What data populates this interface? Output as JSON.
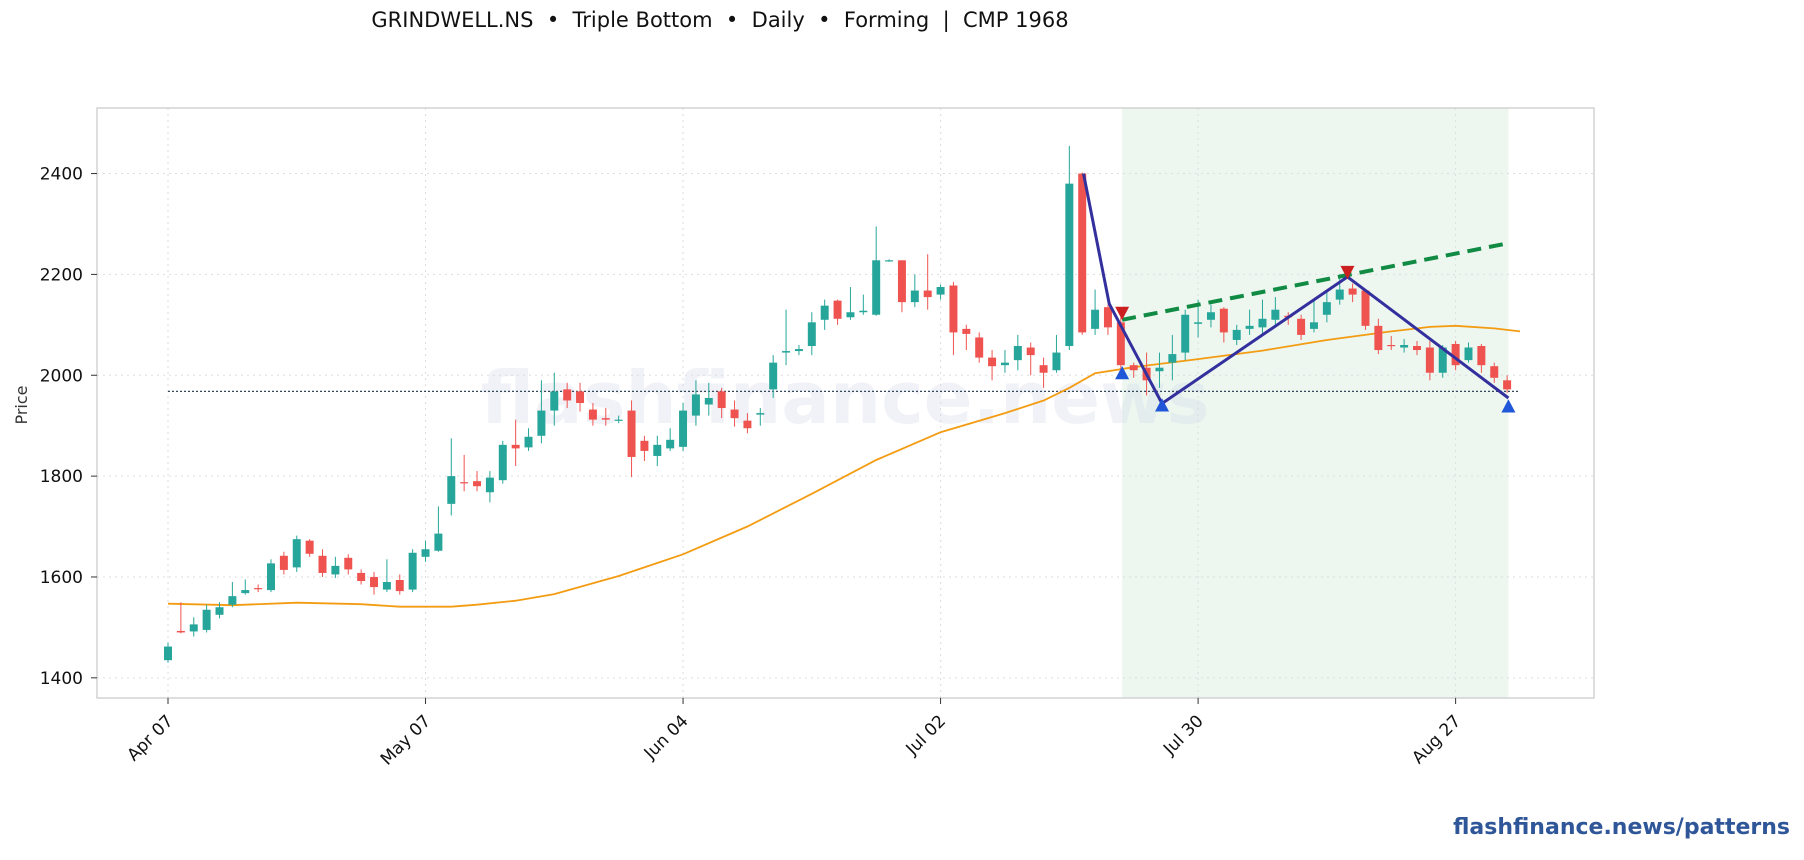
{
  "title": "GRINDWELL.NS  •  Triple Bottom  •  Daily  •  Forming  |  CMP 1968",
  "watermark": "flashfinance.news",
  "footer_link": "flashfinance.news/patterns",
  "colors": {
    "up": "#26a69a",
    "down": "#ef5350",
    "ma": "#f39c12",
    "neckline": "#118a44",
    "pattern": "#33309e",
    "highlight": "#dff0e3",
    "cmp": "#34495e"
  },
  "chart_data": {
    "type": "candlestick",
    "ylabel": "Price",
    "ylim": [
      1360,
      2530
    ],
    "yticks": [
      1400,
      1600,
      1800,
      2000,
      2200,
      2400
    ],
    "xticks": [
      {
        "label": "Apr 07",
        "i": 0
      },
      {
        "label": "May 07",
        "i": 20
      },
      {
        "label": "Jun 04",
        "i": 40
      },
      {
        "label": "Jul 02",
        "i": 60
      },
      {
        "label": "Jul 30",
        "i": 80
      },
      {
        "label": "Aug 27",
        "i": 100
      }
    ],
    "n_bars": 106,
    "candles": [
      [
        1435,
        1462,
        1470,
        1430
      ],
      [
        1493,
        1490,
        1550,
        1488
      ],
      [
        1492,
        1506,
        1520,
        1482
      ],
      [
        1495,
        1535,
        1545,
        1490
      ],
      [
        1525,
        1540,
        1550,
        1518
      ],
      [
        1545,
        1562,
        1590,
        1540
      ],
      [
        1568,
        1574,
        1595,
        1565
      ],
      [
        1578,
        1576,
        1585,
        1570
      ],
      [
        1574,
        1627,
        1635,
        1570
      ],
      [
        1642,
        1614,
        1650,
        1605
      ],
      [
        1619,
        1675,
        1682,
        1610
      ],
      [
        1672,
        1646,
        1675,
        1640
      ],
      [
        1642,
        1608,
        1655,
        1600
      ],
      [
        1605,
        1622,
        1640,
        1598
      ],
      [
        1638,
        1615,
        1645,
        1605
      ],
      [
        1608,
        1592,
        1615,
        1585
      ],
      [
        1600,
        1580,
        1610,
        1565
      ],
      [
        1575,
        1590,
        1635,
        1570
      ],
      [
        1594,
        1572,
        1605,
        1565
      ],
      [
        1575,
        1648,
        1655,
        1570
      ],
      [
        1640,
        1655,
        1672,
        1630
      ],
      [
        1652,
        1686,
        1740,
        1650
      ],
      [
        1745,
        1800,
        1875,
        1722
      ],
      [
        1788,
        1786,
        1842,
        1770
      ],
      [
        1790,
        1780,
        1810,
        1770
      ],
      [
        1768,
        1797,
        1810,
        1748
      ],
      [
        1792,
        1862,
        1870,
        1785
      ],
      [
        1862,
        1855,
        1912,
        1820
      ],
      [
        1857,
        1878,
        1895,
        1850
      ],
      [
        1880,
        1930,
        1990,
        1865
      ],
      [
        1930,
        1968,
        2005,
        1900
      ],
      [
        1972,
        1950,
        1985,
        1935
      ],
      [
        1968,
        1945,
        1985,
        1928
      ],
      [
        1932,
        1912,
        1945,
        1900
      ],
      [
        1915,
        1912,
        1935,
        1900
      ],
      [
        1912,
        1912,
        1920,
        1905
      ],
      [
        1930,
        1838,
        1950,
        1798
      ],
      [
        1870,
        1850,
        1880,
        1830
      ],
      [
        1840,
        1862,
        1880,
        1820
      ],
      [
        1855,
        1872,
        1895,
        1850
      ],
      [
        1858,
        1930,
        1945,
        1850
      ],
      [
        1920,
        1962,
        1990,
        1900
      ],
      [
        1942,
        1955,
        1985,
        1920
      ],
      [
        1968,
        1935,
        1975,
        1915
      ],
      [
        1932,
        1915,
        1950,
        1898
      ],
      [
        1910,
        1895,
        1925,
        1885
      ],
      [
        1922,
        1925,
        1935,
        1900
      ],
      [
        1972,
        2025,
        2040,
        1955
      ],
      [
        2045,
        2048,
        2130,
        2020
      ],
      [
        2048,
        2052,
        2060,
        2040
      ],
      [
        2058,
        2105,
        2125,
        2040
      ],
      [
        2110,
        2138,
        2150,
        2090
      ],
      [
        2148,
        2112,
        2150,
        2100
      ],
      [
        2115,
        2125,
        2175,
        2110
      ],
      [
        2125,
        2128,
        2160,
        2120
      ],
      [
        2120,
        2228,
        2295,
        2118
      ],
      [
        2228,
        2228,
        2230,
        2225
      ],
      [
        2228,
        2145,
        2228,
        2125
      ],
      [
        2145,
        2168,
        2200,
        2135
      ],
      [
        2168,
        2155,
        2240,
        2130
      ],
      [
        2160,
        2175,
        2180,
        2150
      ],
      [
        2178,
        2085,
        2185,
        2040
      ],
      [
        2092,
        2082,
        2100,
        2050
      ],
      [
        2075,
        2035,
        2085,
        2025
      ],
      [
        2035,
        2018,
        2050,
        1990
      ],
      [
        2020,
        2025,
        2050,
        2005
      ],
      [
        2030,
        2058,
        2080,
        2010
      ],
      [
        2055,
        2040,
        2065,
        2000
      ],
      [
        2020,
        2005,
        2035,
        1975
      ],
      [
        2010,
        2045,
        2080,
        2005
      ],
      [
        2058,
        2380,
        2455,
        2050
      ],
      [
        2400,
        2085,
        2402,
        2080
      ],
      [
        2092,
        2130,
        2170,
        2080
      ],
      [
        2135,
        2095,
        2140,
        2080
      ],
      [
        2105,
        2020,
        2115,
        2000
      ],
      [
        2020,
        2010,
        2025,
        1995
      ],
      [
        2015,
        1990,
        2045,
        1960
      ],
      [
        2008,
        2015,
        2045,
        1975
      ],
      [
        2025,
        2042,
        2080,
        1990
      ],
      [
        2045,
        2120,
        2130,
        2030
      ],
      [
        2102,
        2105,
        2150,
        2075
      ],
      [
        2110,
        2125,
        2140,
        2095
      ],
      [
        2132,
        2085,
        2135,
        2065
      ],
      [
        2070,
        2090,
        2100,
        2060
      ],
      [
        2092,
        2098,
        2130,
        2080
      ],
      [
        2095,
        2112,
        2150,
        2080
      ],
      [
        2110,
        2130,
        2155,
        2095
      ],
      [
        2118,
        2115,
        2125,
        2100
      ],
      [
        2112,
        2080,
        2120,
        2070
      ],
      [
        2092,
        2105,
        2150,
        2085
      ],
      [
        2120,
        2145,
        2165,
        2105
      ],
      [
        2150,
        2170,
        2200,
        2140
      ],
      [
        2172,
        2160,
        2182,
        2145
      ],
      [
        2168,
        2098,
        2170,
        2090
      ],
      [
        2098,
        2050,
        2112,
        2042
      ],
      [
        2060,
        2058,
        2078,
        2050
      ],
      [
        2055,
        2060,
        2072,
        2045
      ],
      [
        2058,
        2050,
        2068,
        2040
      ],
      [
        2055,
        2005,
        2068,
        1990
      ],
      [
        2005,
        2055,
        2060,
        1995
      ],
      [
        2062,
        2020,
        2068,
        2010
      ],
      [
        2030,
        2055,
        2065,
        2025
      ],
      [
        2058,
        2020,
        2062,
        2005
      ],
      [
        2018,
        1995,
        2025,
        1985
      ],
      [
        1990,
        1972,
        2000,
        1965
      ]
    ],
    "ma": [
      [
        0,
        1547
      ],
      [
        5,
        1544
      ],
      [
        10,
        1549
      ],
      [
        15,
        1546
      ],
      [
        18,
        1541
      ],
      [
        22,
        1541
      ],
      [
        24,
        1545
      ],
      [
        27,
        1553
      ],
      [
        30,
        1566
      ],
      [
        35,
        1602
      ],
      [
        40,
        1645
      ],
      [
        45,
        1700
      ],
      [
        50,
        1765
      ],
      [
        55,
        1832
      ],
      [
        60,
        1887
      ],
      [
        65,
        1925
      ],
      [
        68,
        1950
      ],
      [
        70,
        1975
      ],
      [
        72,
        2004
      ],
      [
        75,
        2016
      ],
      [
        80,
        2032
      ],
      [
        85,
        2049
      ],
      [
        90,
        2070
      ],
      [
        95,
        2087
      ],
      [
        98,
        2096
      ],
      [
        100,
        2098
      ],
      [
        103,
        2093
      ],
      [
        105,
        2087
      ]
    ],
    "cmp": 1968,
    "pattern_line": [
      [
        71.1,
        2400
      ],
      [
        73.1,
        2142
      ],
      [
        77.2,
        1944
      ],
      [
        91.6,
        2195
      ],
      [
        104.1,
        1955
      ]
    ],
    "neckline": [
      [
        74.1,
        2110
      ],
      [
        104.1,
        2262
      ]
    ],
    "highlight_range": [
      74.1,
      104.1
    ],
    "markers": [
      {
        "type": "peak",
        "x": 74.1,
        "y": 2122
      },
      {
        "type": "peak",
        "x": 91.6,
        "y": 2203
      },
      {
        "type": "trough",
        "x": 74.1,
        "y": 2006
      },
      {
        "type": "trough",
        "x": 77.2,
        "y": 1942
      },
      {
        "type": "trough",
        "x": 104.1,
        "y": 1940
      }
    ]
  }
}
